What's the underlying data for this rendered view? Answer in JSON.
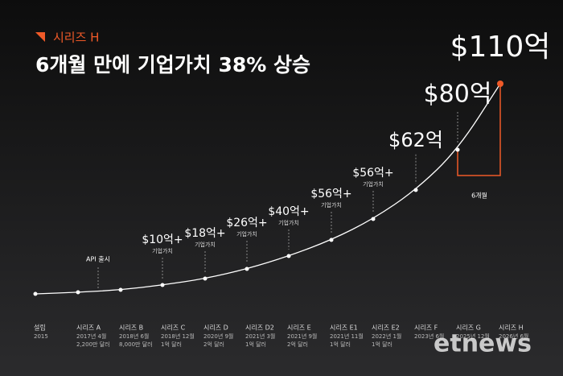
{
  "header": {
    "tag": "시리즈 H",
    "title": "6개월 만에 기업가치 38% 상승"
  },
  "milestones": [
    {
      "name": "설립",
      "date": "2015"
    },
    {
      "name": "시리즈 A",
      "date": "2017년 4월",
      "amount": "2,200만 달러",
      "note": "API 출시"
    },
    {
      "name": "시리즈 B",
      "date": "2018년 6월",
      "amount": "8,000만 달러"
    },
    {
      "name": "시리즈 C",
      "date": "2018년 12월",
      "amount": "1억 달러",
      "valuation": "$10억+",
      "valuation_caption": "기업가치"
    },
    {
      "name": "시리즈 D",
      "date": "2020년 9월",
      "amount": "2억 달러",
      "valuation": "$18억+",
      "valuation_caption": "기업가치"
    },
    {
      "name": "시리즈 D2",
      "date": "2021년 3월",
      "amount": "1억 달러",
      "valuation": "$26억+",
      "valuation_caption": "기업가치"
    },
    {
      "name": "시리즈 E",
      "date": "2021년 9월",
      "amount": "2억 달러",
      "valuation": "$40억+",
      "valuation_caption": "기업가치"
    },
    {
      "name": "시리즈 E1",
      "date": "2021년 11월",
      "amount": "1억 달러",
      "valuation": "$56억+",
      "valuation_caption": "기업가치"
    },
    {
      "name": "시리즈 E2",
      "date": "2022년 1월",
      "amount": "1억 달러",
      "valuation": "$56억+",
      "valuation_caption": "기업가치"
    },
    {
      "name": "시리즈 F",
      "date": "2023년 6월",
      "valuation": "$62억"
    },
    {
      "name": "시리즈 G",
      "date": "2025년 12월",
      "valuation": "$80억"
    },
    {
      "name": "시리즈 H",
      "date": "2026년 6월",
      "valuation": "$110억"
    }
  ],
  "bracket_label": "6개월",
  "watermark": "etnews"
}
